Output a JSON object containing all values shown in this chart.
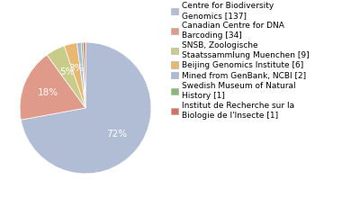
{
  "labels": [
    "Centre for Biodiversity\nGenomics [137]",
    "Canadian Centre for DNA\nBarcoding [34]",
    "SNSB, Zoologische\nStaatssammlung Muenchen [9]",
    "Beijing Genomics Institute [6]",
    "Mined from GenBank, NCBI [2]",
    "Swedish Museum of Natural\nHistory [1]",
    "Institut de Recherche sur la\nBiologie de l'Insecte [1]"
  ],
  "values": [
    137,
    34,
    9,
    6,
    2,
    1,
    1
  ],
  "colors": [
    "#b0bdd4",
    "#e09a8a",
    "#c8cc88",
    "#e8b870",
    "#a8bcd8",
    "#88b878",
    "#d87060"
  ],
  "background_color": "#ffffff",
  "fontsize": 6.5,
  "pct_fontsize": 7.5
}
